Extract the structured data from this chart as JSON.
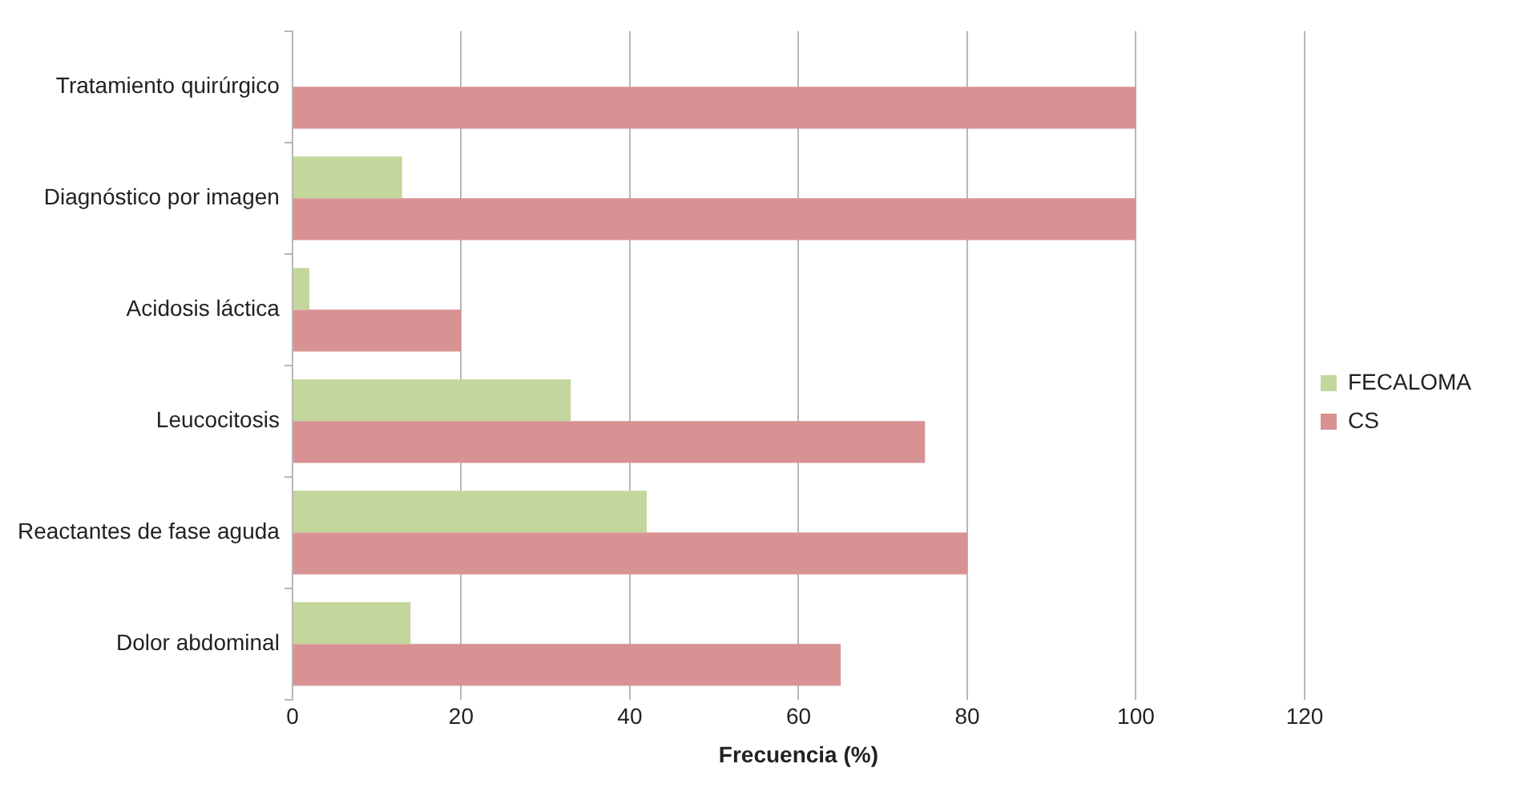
{
  "chart_data": {
    "type": "bar",
    "orientation": "horizontal",
    "xlabel": "Frecuencia (%)",
    "categories": [
      "Tratamiento quirúrgico",
      "Diagnóstico por imagen",
      "Acidosis láctica",
      "Leucocitosis",
      "Reactantes de fase aguda",
      "Dolor abdominal"
    ],
    "series": [
      {
        "name": "FECALOMA",
        "color": "#c3d69b",
        "values": [
          0,
          13,
          2,
          33,
          42,
          14
        ]
      },
      {
        "name": "CS",
        "color": "#d99294",
        "values": [
          100,
          100,
          20,
          75,
          80,
          65
        ]
      }
    ],
    "xlim": [
      0,
      120
    ],
    "xticks": [
      0,
      20,
      40,
      60,
      80,
      100,
      120
    ],
    "grid": "x",
    "legend": "right"
  }
}
